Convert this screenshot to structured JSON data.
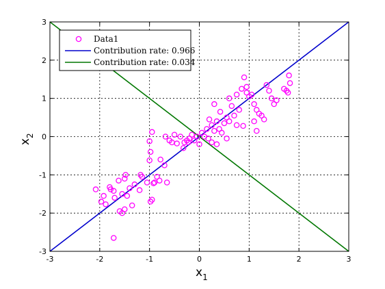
{
  "chart_data": {
    "type": "scatter",
    "xlabel": {
      "symbol": "x",
      "subscript": "1"
    },
    "ylabel": {
      "symbol": "x",
      "subscript": "2"
    },
    "xlim": [
      -3,
      3
    ],
    "ylim": [
      -3,
      3
    ],
    "xticks": [
      -3,
      -2,
      -1,
      0,
      1,
      2,
      3
    ],
    "yticks": [
      -3,
      -2,
      -1,
      0,
      1,
      2,
      3
    ],
    "grid": true,
    "legend_position": "top-left",
    "series": [
      {
        "name": "Data1",
        "kind": "scatter",
        "marker": "circle",
        "color": "#ff00ff",
        "points": [
          [
            -2.08,
            -1.38
          ],
          [
            -1.97,
            -1.7
          ],
          [
            -1.92,
            -1.55
          ],
          [
            -1.88,
            -1.77
          ],
          [
            -1.8,
            -1.32
          ],
          [
            -1.78,
            -1.38
          ],
          [
            -1.72,
            -1.42
          ],
          [
            -1.7,
            -1.6
          ],
          [
            -1.62,
            -1.15
          ],
          [
            -1.55,
            -1.5
          ],
          [
            -1.5,
            -1.1
          ],
          [
            -1.48,
            -1.0
          ],
          [
            -1.45,
            -1.55
          ],
          [
            -1.4,
            -1.35
          ],
          [
            -1.35,
            -1.8
          ],
          [
            -1.3,
            -1.25
          ],
          [
            -1.2,
            -1.4
          ],
          [
            -1.18,
            -1.0
          ],
          [
            -1.15,
            -1.05
          ],
          [
            -1.05,
            -1.2
          ],
          [
            -1.0,
            -0.62
          ],
          [
            -0.98,
            -1.7
          ],
          [
            -0.95,
            -1.65
          ],
          [
            -0.92,
            -1.22
          ],
          [
            -0.9,
            -1.2
          ],
          [
            -0.85,
            -1.05
          ],
          [
            -0.8,
            -1.15
          ],
          [
            -0.78,
            -0.6
          ],
          [
            -0.7,
            -0.75
          ],
          [
            -0.65,
            -1.2
          ],
          [
            -1.6,
            -1.95
          ],
          [
            -1.55,
            -2.0
          ],
          [
            -1.5,
            -1.9
          ],
          [
            -1.72,
            -2.65
          ],
          [
            -0.98,
            -0.4
          ],
          [
            -1.0,
            -0.12
          ],
          [
            -0.95,
            0.12
          ],
          [
            -0.68,
            0.0
          ],
          [
            -0.6,
            -0.1
          ],
          [
            -0.55,
            -0.15
          ],
          [
            -0.45,
            -0.18
          ],
          [
            -0.38,
            0.0
          ],
          [
            -0.3,
            -0.15
          ],
          [
            -0.25,
            -0.1
          ],
          [
            -0.2,
            -0.05
          ],
          [
            -0.15,
            0.05
          ],
          [
            -0.1,
            -0.1
          ],
          [
            -0.05,
            0.0
          ],
          [
            0.0,
            -0.2
          ],
          [
            0.05,
            0.1
          ],
          [
            -0.22,
            -0.15
          ],
          [
            -0.32,
            -0.3
          ],
          [
            -0.5,
            0.05
          ],
          [
            0.1,
            0.0
          ],
          [
            0.15,
            0.2
          ],
          [
            0.2,
            0.45
          ],
          [
            0.25,
            0.3
          ],
          [
            0.3,
            0.15
          ],
          [
            0.35,
            0.4
          ],
          [
            0.4,
            0.2
          ],
          [
            0.45,
            0.1
          ],
          [
            0.5,
            0.35
          ],
          [
            0.55,
            0.5
          ],
          [
            0.6,
            0.4
          ],
          [
            0.65,
            0.8
          ],
          [
            0.7,
            0.55
          ],
          [
            0.75,
            0.3
          ],
          [
            0.8,
            0.7
          ],
          [
            0.3,
            0.85
          ],
          [
            0.42,
            0.65
          ],
          [
            0.18,
            -0.05
          ],
          [
            0.25,
            -0.15
          ],
          [
            0.35,
            -0.2
          ],
          [
            0.55,
            -0.05
          ],
          [
            0.6,
            1.0
          ],
          [
            0.75,
            1.1
          ],
          [
            0.85,
            1.25
          ],
          [
            0.9,
            1.55
          ],
          [
            0.95,
            1.3
          ],
          [
            1.0,
            1.05
          ],
          [
            1.05,
            1.1
          ],
          [
            1.1,
            0.85
          ],
          [
            1.15,
            0.7
          ],
          [
            1.2,
            0.6
          ],
          [
            1.25,
            0.55
          ],
          [
            1.3,
            0.45
          ],
          [
            1.35,
            1.35
          ],
          [
            1.4,
            1.2
          ],
          [
            1.45,
            1.0
          ],
          [
            1.5,
            0.85
          ],
          [
            1.55,
            0.95
          ],
          [
            1.7,
            1.25
          ],
          [
            1.75,
            1.2
          ],
          [
            1.8,
            1.6
          ],
          [
            1.82,
            1.4
          ],
          [
            1.15,
            0.15
          ],
          [
            0.88,
            0.28
          ],
          [
            1.1,
            0.4
          ],
          [
            0.95,
            1.15
          ],
          [
            1.78,
            1.15
          ]
        ]
      },
      {
        "name": "Contribution rate: 0.966",
        "kind": "line",
        "color": "#0000cc",
        "points": [
          [
            -3,
            -3
          ],
          [
            3,
            3
          ]
        ]
      },
      {
        "name": "Contribution rate: 0.034",
        "kind": "line",
        "color": "#007700",
        "points": [
          [
            -3,
            3
          ],
          [
            3,
            -3
          ]
        ]
      }
    ]
  }
}
